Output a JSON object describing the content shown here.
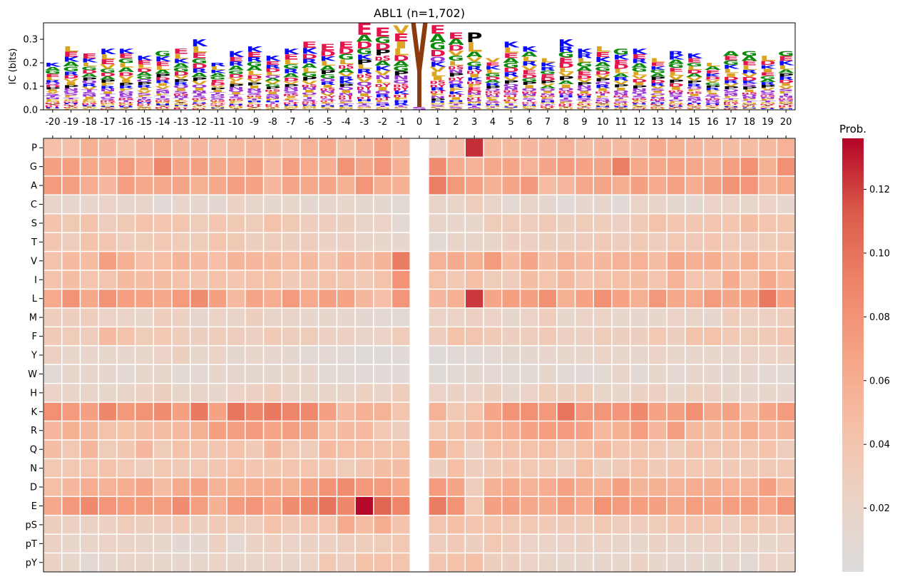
{
  "chart_data": [
    {
      "type": "sequence-logo",
      "title": "ABL1 (n=1,702)",
      "ylabel": "IC (bits)",
      "ylim": [
        0,
        0.37
      ],
      "yticks": [
        "0.0",
        "0.1",
        "0.2",
        "0.3"
      ],
      "positions": [
        "-20",
        "-19",
        "-18",
        "-17",
        "-16",
        "-15",
        "-14",
        "-13",
        "-12",
        "-11",
        "-10",
        "-9",
        "-8",
        "-7",
        "-6",
        "-5",
        "-4",
        "-3",
        "-2",
        "-1",
        "0",
        "1",
        "2",
        "3",
        "4",
        "5",
        "6",
        "7",
        "8",
        "9",
        "10",
        "11",
        "12",
        "13",
        "14",
        "15",
        "16",
        "17",
        "18",
        "19",
        "20"
      ],
      "ic": [
        0.2,
        0.27,
        0.24,
        0.26,
        0.26,
        0.23,
        0.25,
        0.26,
        0.3,
        0.2,
        0.25,
        0.27,
        0.23,
        0.26,
        0.29,
        0.28,
        0.29,
        0.37,
        0.35,
        0.36,
        0.37,
        0.36,
        0.33,
        0.33,
        0.22,
        0.29,
        0.27,
        0.22,
        0.3,
        0.26,
        0.27,
        0.26,
        0.26,
        0.22,
        0.25,
        0.24,
        0.2,
        0.25,
        0.25,
        0.23,
        0.25
      ],
      "center_residue": "Y",
      "colors": {
        "K": "#0a0aff",
        "R": "#0a0aff",
        "H": "#0a0aff",
        "D": "#e4134b",
        "E": "#e4134b",
        "G": "#0a8a0a",
        "A": "#0a8a0a",
        "P": "#000000",
        "V": "#dba521",
        "L": "#dba521",
        "I": "#dba521",
        "M": "#dba521",
        "C": "#dba521",
        "F": "#dba521",
        "W": "#dba521",
        "Y": "#8b3a0e",
        "S": "#9a33d6",
        "T": "#9a33d6",
        "N": "#9a33d6",
        "Q": "#9a33d6",
        "pS": "#e4134b",
        "pT": "#e4134b",
        "pY": "#e4134b"
      }
    },
    {
      "type": "heatmap",
      "colorbar_label": "Prob.",
      "colorbar_ticks": [
        "0.02",
        "0.04",
        "0.06",
        "0.08",
        "0.10",
        "0.12"
      ],
      "vmin": 0,
      "vmax": 0.136,
      "colormap": [
        "#dddcdc",
        "#ebd3c6",
        "#f5c0a7",
        "#f6a385",
        "#ee8468",
        "#da5a49",
        "#b40426"
      ],
      "rows": [
        "P",
        "G",
        "A",
        "C",
        "S",
        "T",
        "V",
        "I",
        "L",
        "M",
        "F",
        "Y",
        "W",
        "H",
        "K",
        "R",
        "Q",
        "N",
        "D",
        "E",
        "pS",
        "pT",
        "pY"
      ],
      "columns": [
        "-20",
        "-19",
        "-18",
        "-17",
        "-16",
        "-15",
        "-14",
        "-13",
        "-12",
        "-11",
        "-10",
        "-9",
        "-8",
        "-7",
        "-6",
        "-5",
        "-4",
        "-3",
        "-2",
        "-1",
        "0",
        "1",
        "2",
        "3",
        "4",
        "5",
        "6",
        "7",
        "8",
        "9",
        "10",
        "11",
        "12",
        "13",
        "14",
        "15",
        "16",
        "17",
        "18",
        "19",
        "20"
      ],
      "values": [
        [
          0.045,
          0.045,
          0.058,
          0.052,
          0.045,
          0.052,
          0.06,
          0.052,
          0.052,
          0.045,
          0.05,
          0.052,
          0.05,
          0.045,
          0.056,
          0.062,
          0.048,
          0.055,
          0.068,
          0.05,
          null,
          0.025,
          0.045,
          0.125,
          0.05,
          0.05,
          0.052,
          0.052,
          0.056,
          0.048,
          0.052,
          0.05,
          0.048,
          0.062,
          0.058,
          0.052,
          0.05,
          0.048,
          0.048,
          0.05,
          0.056
        ],
        [
          0.07,
          0.072,
          0.064,
          0.062,
          0.074,
          0.062,
          0.088,
          0.066,
          0.07,
          0.064,
          0.064,
          0.07,
          0.05,
          0.072,
          0.062,
          0.06,
          0.08,
          0.066,
          0.078,
          0.058,
          null,
          0.084,
          0.062,
          0.056,
          0.064,
          0.066,
          0.056,
          0.066,
          0.074,
          0.068,
          0.066,
          0.094,
          0.064,
          0.064,
          0.068,
          0.064,
          0.06,
          0.072,
          0.082,
          0.058,
          0.082
        ],
        [
          0.074,
          0.072,
          0.06,
          0.052,
          0.07,
          0.064,
          0.064,
          0.066,
          0.058,
          0.064,
          0.072,
          0.068,
          0.052,
          0.066,
          0.064,
          0.066,
          0.058,
          0.078,
          0.06,
          0.058,
          null,
          0.094,
          0.076,
          0.068,
          0.058,
          0.066,
          0.076,
          0.048,
          0.052,
          0.064,
          0.066,
          0.06,
          0.07,
          0.062,
          0.068,
          0.06,
          0.072,
          0.08,
          0.078,
          0.056,
          0.064
        ],
        [
          0.02,
          0.015,
          0.015,
          0.022,
          0.014,
          0.02,
          0.006,
          0.018,
          0.014,
          0.012,
          0.024,
          0.018,
          0.013,
          0.016,
          0.012,
          0.014,
          0.016,
          0.012,
          0.012,
          0.008,
          null,
          0.02,
          0.02,
          0.03,
          0.02,
          0.01,
          0.02,
          0.012,
          0.006,
          0.014,
          0.014,
          0.006,
          0.022,
          0.02,
          0.012,
          0.012,
          0.022,
          0.022,
          0.016,
          0.022,
          0.016
        ],
        [
          0.042,
          0.035,
          0.042,
          0.03,
          0.035,
          0.042,
          0.04,
          0.04,
          0.032,
          0.038,
          0.035,
          0.032,
          0.044,
          0.035,
          0.03,
          0.03,
          0.028,
          0.02,
          0.022,
          0.01,
          null,
          0.02,
          0.018,
          0.018,
          0.032,
          0.032,
          0.03,
          0.034,
          0.028,
          0.032,
          0.03,
          0.026,
          0.034,
          0.044,
          0.038,
          0.038,
          0.04,
          0.038,
          0.048,
          0.04,
          0.04
        ],
        [
          0.038,
          0.03,
          0.042,
          0.038,
          0.03,
          0.032,
          0.036,
          0.032,
          0.032,
          0.04,
          0.035,
          0.028,
          0.03,
          0.028,
          0.03,
          0.024,
          0.026,
          0.02,
          0.018,
          0.014,
          null,
          0.008,
          0.02,
          0.02,
          0.02,
          0.028,
          0.026,
          0.028,
          0.028,
          0.03,
          0.034,
          0.03,
          0.034,
          0.03,
          0.036,
          0.034,
          0.038,
          0.032,
          0.03,
          0.032,
          0.036
        ],
        [
          0.042,
          0.05,
          0.048,
          0.07,
          0.058,
          0.045,
          0.046,
          0.054,
          0.05,
          0.045,
          0.054,
          0.052,
          0.05,
          0.046,
          0.05,
          0.038,
          0.052,
          0.048,
          0.054,
          0.095,
          null,
          0.056,
          0.062,
          0.058,
          0.074,
          0.05,
          0.066,
          0.048,
          0.056,
          0.05,
          0.052,
          0.056,
          0.056,
          0.048,
          0.064,
          0.058,
          0.06,
          0.048,
          0.058,
          0.046,
          0.046
        ],
        [
          0.042,
          0.048,
          0.04,
          0.04,
          0.05,
          0.048,
          0.048,
          0.044,
          0.038,
          0.044,
          0.038,
          0.044,
          0.044,
          0.034,
          0.038,
          0.042,
          0.04,
          0.034,
          0.044,
          0.08,
          null,
          0.044,
          0.034,
          0.046,
          0.032,
          0.03,
          0.048,
          0.04,
          0.05,
          0.038,
          0.044,
          0.046,
          0.048,
          0.04,
          0.056,
          0.04,
          0.04,
          0.062,
          0.042,
          0.064,
          0.05
        ],
        [
          0.062,
          0.08,
          0.064,
          0.08,
          0.072,
          0.068,
          0.064,
          0.074,
          0.084,
          0.07,
          0.05,
          0.066,
          0.06,
          0.074,
          0.062,
          0.07,
          0.068,
          0.052,
          0.045,
          0.078,
          null,
          0.052,
          0.058,
          0.122,
          0.066,
          0.072,
          0.07,
          0.082,
          0.058,
          0.068,
          0.082,
          0.068,
          0.058,
          0.076,
          0.064,
          0.062,
          0.074,
          0.066,
          0.07,
          0.096,
          0.068
        ],
        [
          0.03,
          0.028,
          0.03,
          0.022,
          0.022,
          0.018,
          0.03,
          0.025,
          0.015,
          0.022,
          0.02,
          0.028,
          0.02,
          0.02,
          0.016,
          0.016,
          0.014,
          0.012,
          0.01,
          0.008,
          null,
          0.022,
          0.022,
          0.026,
          0.022,
          0.016,
          0.022,
          0.03,
          0.016,
          0.022,
          0.022,
          0.016,
          0.018,
          0.016,
          0.022,
          0.02,
          0.014,
          0.03,
          0.024,
          0.026,
          0.03
        ],
        [
          0.034,
          0.032,
          0.03,
          0.05,
          0.042,
          0.032,
          0.036,
          0.03,
          0.028,
          0.03,
          0.03,
          0.026,
          0.034,
          0.03,
          0.032,
          0.026,
          0.026,
          0.022,
          0.022,
          0.032,
          null,
          0.03,
          0.044,
          0.04,
          0.034,
          0.028,
          0.03,
          0.034,
          0.026,
          0.026,
          0.032,
          0.028,
          0.028,
          0.036,
          0.028,
          0.042,
          0.044,
          0.034,
          0.032,
          0.034,
          0.038
        ],
        [
          0.026,
          0.018,
          0.018,
          0.016,
          0.018,
          0.018,
          0.022,
          0.028,
          0.016,
          0.022,
          0.012,
          0.018,
          0.014,
          0.012,
          0.008,
          0.01,
          0.008,
          0.004,
          0.004,
          0.006,
          null,
          0.004,
          0.008,
          0.006,
          0.01,
          0.012,
          0.012,
          0.014,
          0.016,
          0.018,
          0.022,
          0.018,
          0.018,
          0.022,
          0.018,
          0.016,
          0.018,
          0.016,
          0.022,
          0.022,
          0.024
        ],
        [
          0.008,
          0.016,
          0.016,
          0.014,
          0.008,
          0.016,
          0.016,
          0.01,
          0.01,
          0.016,
          0.014,
          0.012,
          0.012,
          0.016,
          0.018,
          0.008,
          0.008,
          0.006,
          0.006,
          0.006,
          null,
          0.005,
          0.008,
          0.012,
          0.01,
          0.008,
          0.008,
          0.014,
          0.008,
          0.006,
          0.01,
          0.02,
          0.008,
          0.016,
          0.01,
          0.014,
          0.014,
          0.012,
          0.014,
          0.01,
          0.01
        ],
        [
          0.022,
          0.02,
          0.02,
          0.016,
          0.02,
          0.024,
          0.028,
          0.02,
          0.02,
          0.016,
          0.022,
          0.026,
          0.03,
          0.02,
          0.02,
          0.02,
          0.02,
          0.026,
          0.02,
          0.03,
          null,
          0.022,
          0.024,
          0.022,
          0.028,
          0.014,
          0.022,
          0.032,
          0.028,
          0.032,
          0.02,
          0.018,
          0.024,
          0.026,
          0.018,
          0.026,
          0.026,
          0.016,
          0.014,
          0.016,
          0.014
        ],
        [
          0.082,
          0.074,
          0.07,
          0.088,
          0.076,
          0.08,
          0.084,
          0.07,
          0.096,
          0.068,
          0.098,
          0.088,
          0.096,
          0.09,
          0.086,
          0.07,
          0.05,
          0.058,
          0.056,
          0.04,
          null,
          0.056,
          0.036,
          0.044,
          0.066,
          0.08,
          0.082,
          0.076,
          0.098,
          0.076,
          0.078,
          0.078,
          0.086,
          0.068,
          0.07,
          0.082,
          0.064,
          0.068,
          0.05,
          0.066,
          0.074
        ],
        [
          0.052,
          0.058,
          0.052,
          0.044,
          0.044,
          0.048,
          0.048,
          0.05,
          0.058,
          0.07,
          0.072,
          0.074,
          0.066,
          0.07,
          0.066,
          0.046,
          0.05,
          0.05,
          0.036,
          0.028,
          null,
          0.036,
          0.044,
          0.05,
          0.056,
          0.06,
          0.068,
          0.072,
          0.074,
          0.068,
          0.05,
          0.058,
          0.072,
          0.052,
          0.07,
          0.05,
          0.048,
          0.05,
          0.06,
          0.05,
          0.054
        ],
        [
          0.048,
          0.036,
          0.052,
          0.032,
          0.038,
          0.052,
          0.032,
          0.044,
          0.04,
          0.038,
          0.042,
          0.034,
          0.052,
          0.036,
          0.032,
          0.05,
          0.046,
          0.046,
          0.042,
          0.044,
          null,
          0.058,
          0.044,
          0.026,
          0.044,
          0.042,
          0.044,
          0.046,
          0.036,
          0.044,
          0.05,
          0.04,
          0.038,
          0.036,
          0.032,
          0.042,
          0.036,
          0.038,
          0.036,
          0.042,
          0.03
        ],
        [
          0.036,
          0.036,
          0.04,
          0.042,
          0.036,
          0.03,
          0.036,
          0.034,
          0.036,
          0.038,
          0.044,
          0.038,
          0.038,
          0.04,
          0.04,
          0.038,
          0.032,
          0.038,
          0.048,
          0.048,
          null,
          0.028,
          0.046,
          0.03,
          0.034,
          0.038,
          0.036,
          0.036,
          0.03,
          0.046,
          0.028,
          0.034,
          0.044,
          0.034,
          0.038,
          0.036,
          0.036,
          0.034,
          0.034,
          0.034,
          0.034
        ],
        [
          0.046,
          0.052,
          0.06,
          0.056,
          0.06,
          0.066,
          0.048,
          0.062,
          0.068,
          0.056,
          0.058,
          0.06,
          0.062,
          0.058,
          0.068,
          0.08,
          0.084,
          0.076,
          0.074,
          0.064,
          null,
          0.074,
          0.066,
          0.03,
          0.058,
          0.062,
          0.056,
          0.06,
          0.068,
          0.06,
          0.058,
          0.07,
          0.054,
          0.058,
          0.056,
          0.06,
          0.06,
          0.056,
          0.056,
          0.07,
          0.05
        ],
        [
          0.064,
          0.076,
          0.086,
          0.078,
          0.074,
          0.074,
          0.072,
          0.084,
          0.072,
          0.058,
          0.074,
          0.078,
          0.068,
          0.084,
          0.088,
          0.1,
          0.088,
          0.135,
          0.106,
          0.09,
          null,
          0.095,
          0.08,
          0.036,
          0.07,
          0.07,
          0.064,
          0.062,
          0.072,
          0.062,
          0.08,
          0.074,
          0.072,
          0.07,
          0.064,
          0.072,
          0.068,
          0.072,
          0.072,
          0.062,
          0.078
        ],
        [
          0.028,
          0.026,
          0.024,
          0.026,
          0.032,
          0.028,
          0.03,
          0.034,
          0.028,
          0.034,
          0.032,
          0.03,
          0.044,
          0.034,
          0.04,
          0.04,
          0.062,
          0.048,
          0.06,
          0.042,
          null,
          0.04,
          0.046,
          0.04,
          0.04,
          0.036,
          0.036,
          0.034,
          0.034,
          0.032,
          0.036,
          0.03,
          0.03,
          0.032,
          0.038,
          0.04,
          0.036,
          0.026,
          0.036,
          0.034,
          0.032
        ],
        [
          0.024,
          0.018,
          0.02,
          0.022,
          0.022,
          0.02,
          0.016,
          0.012,
          0.012,
          0.026,
          0.01,
          0.024,
          0.026,
          0.022,
          0.024,
          0.026,
          0.03,
          0.03,
          0.032,
          0.036,
          null,
          0.03,
          0.034,
          0.028,
          0.036,
          0.03,
          0.022,
          0.022,
          0.022,
          0.024,
          0.022,
          0.02,
          0.016,
          0.024,
          0.02,
          0.02,
          0.022,
          0.022,
          0.02,
          0.016,
          0.022
        ],
        [
          0.024,
          0.016,
          0.01,
          0.014,
          0.02,
          0.02,
          0.016,
          0.014,
          0.016,
          0.022,
          0.02,
          0.02,
          0.022,
          0.02,
          0.022,
          0.036,
          0.03,
          0.044,
          0.044,
          0.04,
          null,
          0.038,
          0.044,
          0.046,
          0.028,
          0.028,
          0.022,
          0.02,
          0.018,
          0.016,
          0.016,
          0.018,
          0.024,
          0.016,
          0.014,
          0.014,
          0.012,
          0.014,
          0.008,
          0.022,
          0.02
        ]
      ]
    }
  ]
}
